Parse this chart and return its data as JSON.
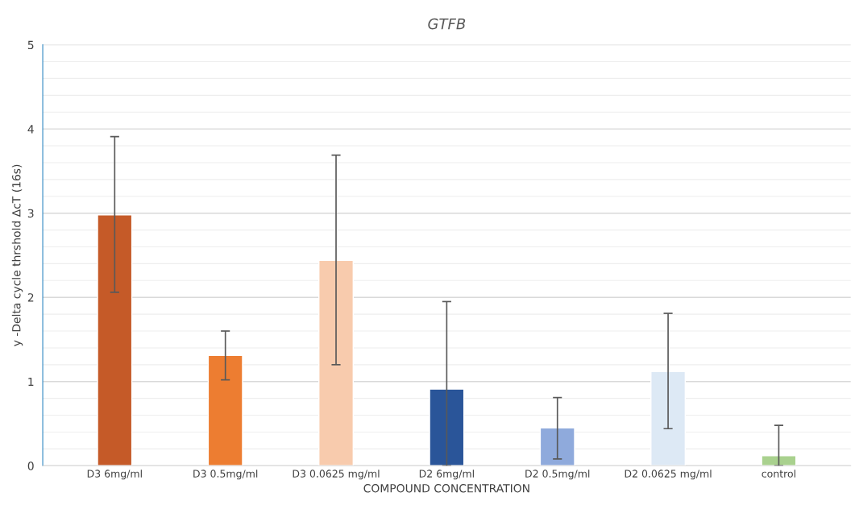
{
  "chart_data": {
    "type": "bar",
    "title": "GTFB",
    "xlabel": "COMPOUND CONCENTRATION",
    "ylabel": "y -Delta cycle thrshold ΔcT (16s)",
    "categories": [
      "D3 6mg/ml",
      "D3 0.5mg/ml",
      "D3 0.0625 mg/ml",
      "D2 6mg/ml",
      "D2 0.5mg/ml",
      "D2 0.0625 mg/ml",
      "control"
    ],
    "values": [
      2.98,
      1.31,
      2.44,
      0.91,
      0.45,
      1.12,
      0.12
    ],
    "errors": [
      [
        2.06,
        3.91
      ],
      [
        1.02,
        1.6
      ],
      [
        1.2,
        3.69
      ],
      [
        0,
        1.95
      ],
      [
        0.08,
        0.81
      ],
      [
        0.44,
        1.81
      ],
      [
        0,
        0.48
      ]
    ],
    "colors": [
      "#c55a28",
      "#ed7d31",
      "#f8cbad",
      "#2a5599",
      "#8faadc",
      "#dde9f5",
      "#a9d18e"
    ],
    "ylim": [
      0,
      5
    ],
    "yticks": [
      0,
      {
        "value": 0.2,
        "label": null
      },
      {
        "value": 0.4,
        "label": null
      },
      {
        "value": 0.6,
        "label": null
      },
      {
        "value": 0.8,
        "label": null
      },
      1,
      {
        "value": 1.2,
        "label": null
      },
      {
        "value": 1.4,
        "label": null
      },
      {
        "value": 1.6,
        "label": null
      },
      {
        "value": 1.8,
        "label": null
      },
      2,
      {
        "value": 2.2,
        "label": null
      },
      {
        "value": 2.4,
        "label": null
      },
      {
        "value": 2.6,
        "label": null
      },
      {
        "value": 2.8,
        "label": null
      },
      3,
      {
        "value": 3.2,
        "label": null
      },
      {
        "value": 3.4,
        "label": null
      },
      {
        "value": 3.6,
        "label": null
      },
      {
        "value": 3.8,
        "label": null
      },
      4,
      {
        "value": 4.2,
        "label": null
      },
      {
        "value": 4.4,
        "label": null
      },
      {
        "value": 4.6,
        "label": null
      },
      {
        "value": 4.8,
        "label": null
      },
      5
    ],
    "grid": "y"
  }
}
